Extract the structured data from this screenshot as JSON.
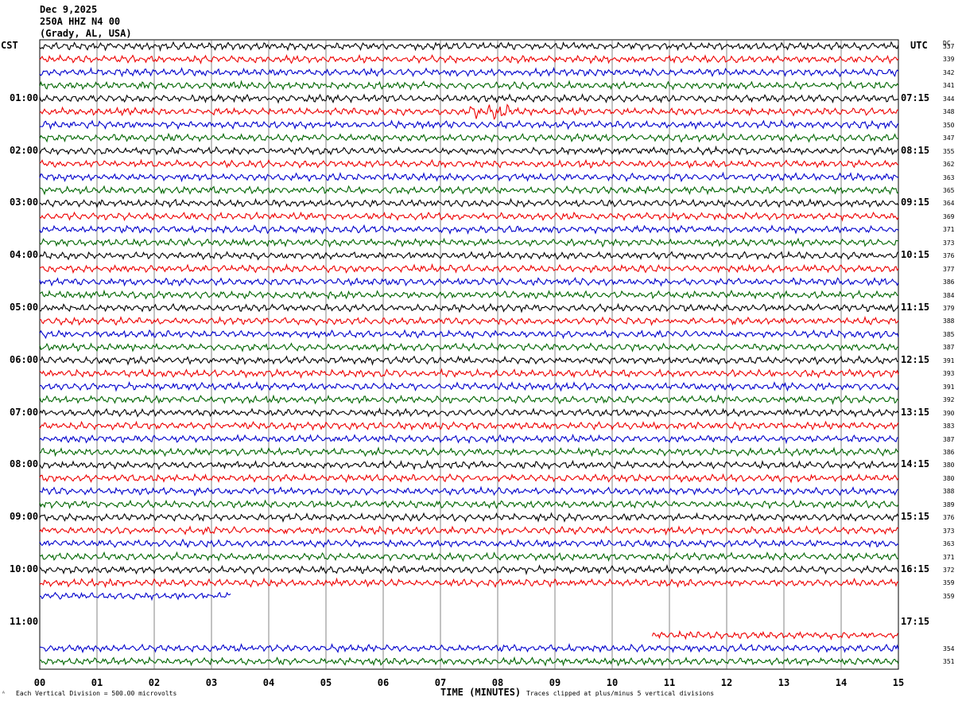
{
  "header": {
    "date": "Dec 9,2025",
    "station": "250A HHZ N4 00",
    "location": "(Grady, AL, USA)"
  },
  "left_zone": "CST",
  "right_zone": "UTC",
  "dc_header": "DC",
  "chart_data": {
    "type": "line",
    "title": "",
    "xlabel": "TIME (MINUTES)",
    "x_ticks": [
      "00",
      "01",
      "02",
      "03",
      "04",
      "05",
      "06",
      "07",
      "08",
      "09",
      "10",
      "11",
      "12",
      "13",
      "14",
      "15"
    ],
    "xlim": [
      0,
      15
    ],
    "left_time_labels": [
      "01:00",
      "02:00",
      "03:00",
      "04:00",
      "05:00",
      "06:00",
      "07:00",
      "08:00",
      "09:00",
      "10:00",
      "11:00"
    ],
    "right_time_labels": [
      "07:15",
      "08:15",
      "09:15",
      "10:15",
      "11:15",
      "12:15",
      "13:15",
      "14:15",
      "15:15",
      "16:15",
      "17:15"
    ],
    "trace_colors": [
      "#000000",
      "#ee0000",
      "#0000cc",
      "#006600"
    ],
    "rows": [
      {
        "dc": "337"
      },
      {
        "dc": "339"
      },
      {
        "dc": "342"
      },
      {
        "dc": "341"
      },
      {
        "dc": "344"
      },
      {
        "dc": "348"
      },
      {
        "dc": "350"
      },
      {
        "dc": "347"
      },
      {
        "dc": "355"
      },
      {
        "dc": "362"
      },
      {
        "dc": "363"
      },
      {
        "dc": "365"
      },
      {
        "dc": "364"
      },
      {
        "dc": "369"
      },
      {
        "dc": "371"
      },
      {
        "dc": "373"
      },
      {
        "dc": "376"
      },
      {
        "dc": "377"
      },
      {
        "dc": "386"
      },
      {
        "dc": "384"
      },
      {
        "dc": "379"
      },
      {
        "dc": "388"
      },
      {
        "dc": "385"
      },
      {
        "dc": "387"
      },
      {
        "dc": "391"
      },
      {
        "dc": "393"
      },
      {
        "dc": "391"
      },
      {
        "dc": "392"
      },
      {
        "dc": "390"
      },
      {
        "dc": "383"
      },
      {
        "dc": "387"
      },
      {
        "dc": "386"
      },
      {
        "dc": "380"
      },
      {
        "dc": "380"
      },
      {
        "dc": "388"
      },
      {
        "dc": "389"
      },
      {
        "dc": "376"
      },
      {
        "dc": "373"
      },
      {
        "dc": "363"
      },
      {
        "dc": "371"
      },
      {
        "dc": "372"
      },
      {
        "dc": "359"
      },
      {
        "dc": "359",
        "end_min": 3.35
      },
      {
        "dc": "",
        "empty": true
      },
      {
        "dc": "",
        "empty": true
      },
      {
        "dc": "",
        "start_min": 10.7
      },
      {
        "dc": "354"
      },
      {
        "dc": "351"
      }
    ]
  },
  "footer": {
    "scale": "Each Vertical Division =  500.00 microvolts",
    "clip": "Traces clipped at plus/minus 5 vertical divisions"
  }
}
